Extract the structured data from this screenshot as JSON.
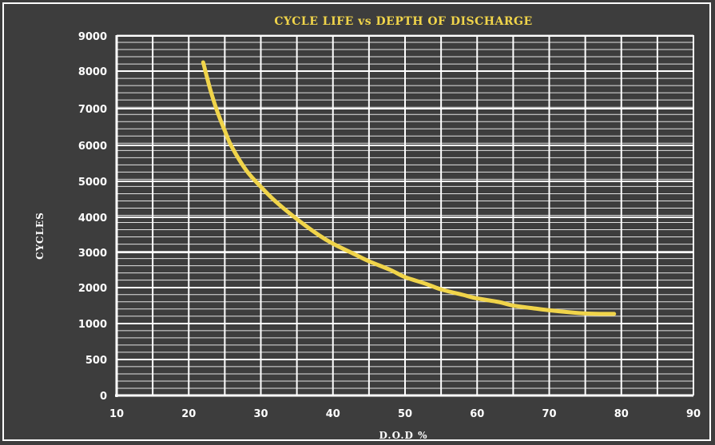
{
  "chart_data": {
    "type": "line",
    "title": "CYCLE LIFE vs DEPTH OF DISCHARGE",
    "xlabel": "D.O.D %",
    "ylabel": "CYCLES",
    "xlim": [
      10,
      90
    ],
    "x_ticks": [
      "10",
      "20",
      "30",
      "40",
      "50",
      "60",
      "70",
      "80",
      "90"
    ],
    "y_ticks": [
      "0",
      "500",
      "1000",
      "2000",
      "3000",
      "4000",
      "5000",
      "6000",
      "7000",
      "8000",
      "9000"
    ],
    "grid": true,
    "series": [
      {
        "color": "#f0d44a",
        "points": [
          [
            22,
            8250
          ],
          [
            23,
            7500
          ],
          [
            24,
            6900
          ],
          [
            25,
            6400
          ],
          [
            26,
            5950
          ],
          [
            28,
            5300
          ],
          [
            30,
            4850
          ],
          [
            32,
            4450
          ],
          [
            35,
            3950
          ],
          [
            38,
            3500
          ],
          [
            40,
            3250
          ],
          [
            43,
            2950
          ],
          [
            45,
            2750
          ],
          [
            48,
            2500
          ],
          [
            50,
            2300
          ],
          [
            53,
            2100
          ],
          [
            55,
            1950
          ],
          [
            58,
            1800
          ],
          [
            60,
            1700
          ],
          [
            63,
            1600
          ],
          [
            65,
            1500
          ],
          [
            68,
            1420
          ],
          [
            70,
            1370
          ],
          [
            73,
            1310
          ],
          [
            75,
            1280
          ],
          [
            77,
            1270
          ],
          [
            79,
            1270
          ]
        ]
      }
    ]
  },
  "colors": {
    "background": "#3d3d3d",
    "grid": "#ffffff",
    "curve": "#f0d44a",
    "title": "#f0d44a"
  }
}
